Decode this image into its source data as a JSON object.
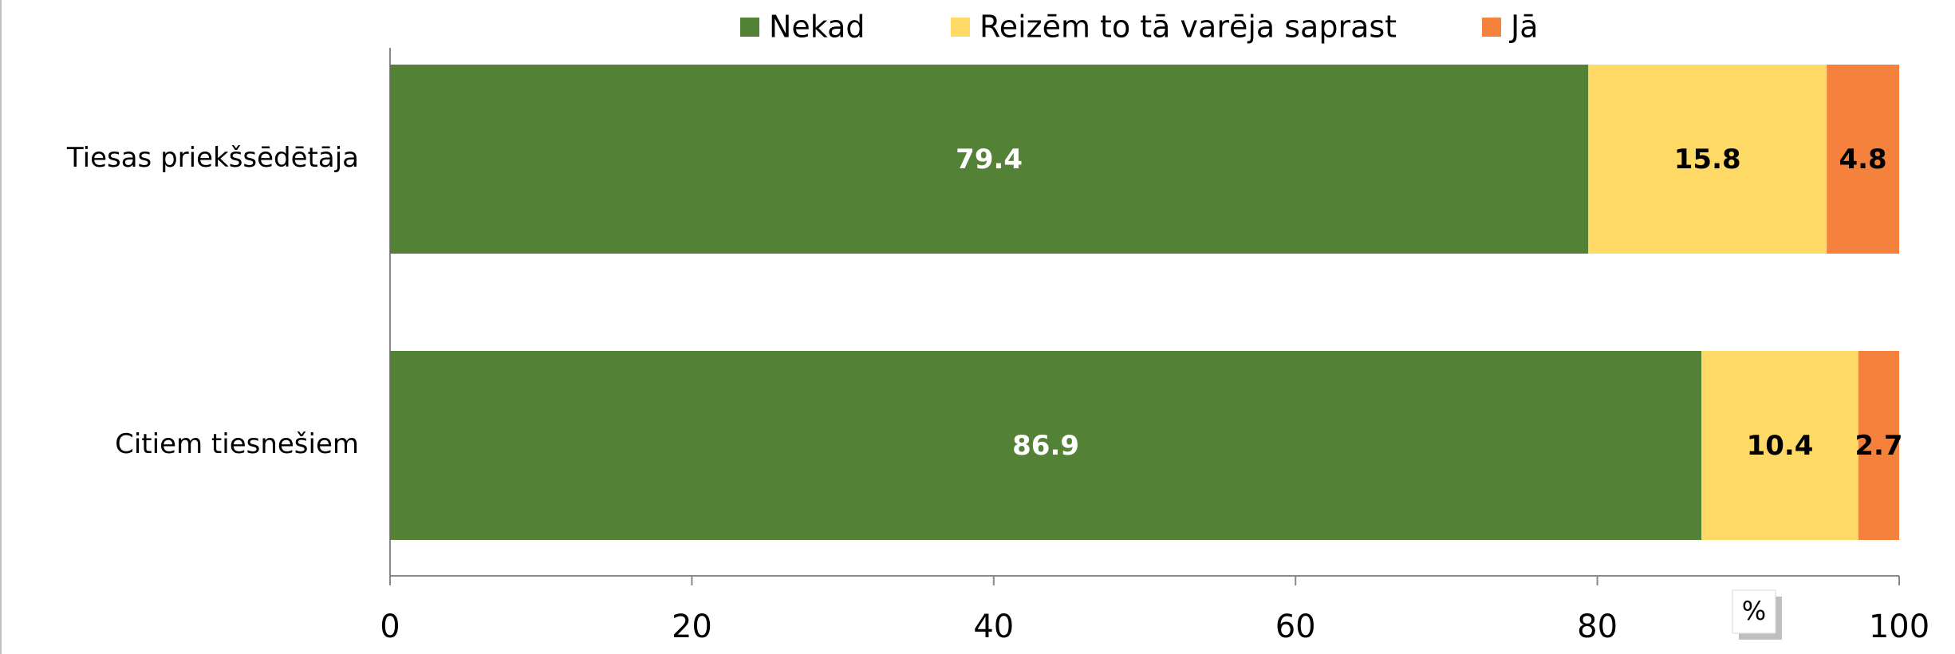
{
  "chart_data": {
    "type": "stacked_barh",
    "categories": [
      "Tiesas priekšsēdētāja",
      "Citiem tiesnešiem"
    ],
    "series": [
      {
        "name": "Nekad",
        "color": "#538135",
        "values": [
          79.4,
          86.9
        ]
      },
      {
        "name": "Reizēm to tā varēja saprast",
        "color": "#ffd966",
        "values": [
          15.8,
          10.4
        ]
      },
      {
        "name": "Jā",
        "color": "#f4823c",
        "values": [
          4.8,
          2.7
        ]
      }
    ],
    "xlim": [
      0,
      100
    ],
    "xticks": [
      0,
      20,
      40,
      60,
      80,
      100
    ],
    "xlabel": "%",
    "legend": "top",
    "grid": false
  }
}
